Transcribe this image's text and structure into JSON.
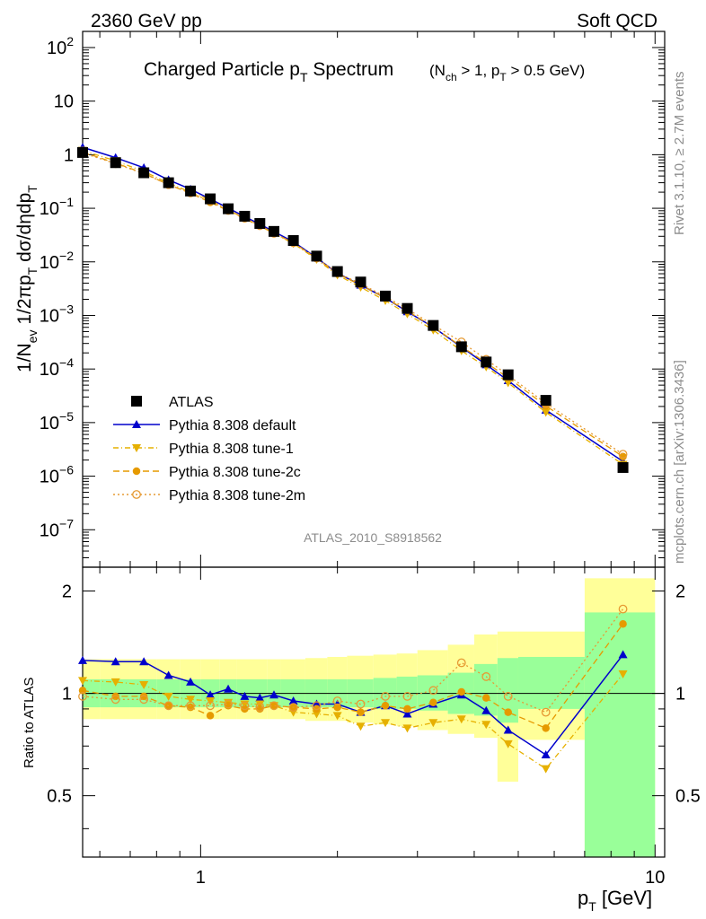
{
  "header": {
    "left": "2360 GeV pp",
    "right": "Soft QCD"
  },
  "side": {
    "rivet": "Rivet 3.1.10, ≥ 2.7M events",
    "mcplots": "mcplots.cern.ch [arXiv:1306.3436]"
  },
  "chart_data": {
    "type": "scatter",
    "title_main": "Charged Particle p",
    "title_main_sub": "T",
    "title_main_tail": " Spectrum",
    "title_cond": "(N",
    "title_cond_sub": "ch",
    "title_cond_mid": " > 1, p",
    "title_cond_sub2": "T",
    "title_cond_tail": " > 0.5 GeV)",
    "analysis_id": "ATLAS_2010_S8918562",
    "ylabel_upper": "1/N_ev 1/2πp_T dσ/dηdp_T",
    "ylabel_ratio": "Ratio to ATLAS",
    "xlabel": "p",
    "xlabel_sub": "T",
    "xlabel_tail": "  [GeV]",
    "xscale": "log",
    "yscale_upper": "log",
    "xlim": [
      0.55,
      10.5
    ],
    "ylim_upper": [
      2e-08,
      200
    ],
    "ylim_ratio": [
      0.33,
      2.35
    ],
    "x_tick_labels": [
      {
        "v": 1,
        "label": "1"
      },
      {
        "v": 10,
        "label": "10"
      }
    ],
    "y_tick_labels_upper": [
      {
        "v": 100,
        "base": "10",
        "exp": "2"
      },
      {
        "v": 10,
        "base": "10",
        "exp": ""
      },
      {
        "v": 1,
        "base": "1",
        "exp": ""
      },
      {
        "v": 0.1,
        "base": "10",
        "exp": "−1"
      },
      {
        "v": 0.01,
        "base": "10",
        "exp": "−2"
      },
      {
        "v": 0.001,
        "base": "10",
        "exp": "−3"
      },
      {
        "v": 0.0001,
        "base": "10",
        "exp": "−4"
      },
      {
        "v": 1e-05,
        "base": "10",
        "exp": "−5"
      },
      {
        "v": 1e-06,
        "base": "10",
        "exp": "−6"
      },
      {
        "v": 1e-07,
        "base": "10",
        "exp": "−7"
      }
    ],
    "y_tick_labels_ratio": [
      {
        "v": 0.5,
        "label": "0.5"
      },
      {
        "v": 1,
        "label": "1"
      },
      {
        "v": 2,
        "label": "2"
      }
    ],
    "legend_position": "bottom-left",
    "x": [
      0.55,
      0.65,
      0.75,
      0.85,
      0.95,
      1.05,
      1.15,
      1.25,
      1.35,
      1.45,
      1.6,
      1.8,
      2.0,
      2.25,
      2.55,
      2.85,
      3.25,
      3.75,
      4.25,
      4.75,
      5.75,
      8.5
    ],
    "x_edges": [
      0.5,
      0.6,
      0.7,
      0.8,
      0.9,
      1.0,
      1.1,
      1.2,
      1.3,
      1.4,
      1.5,
      1.7,
      1.9,
      2.1,
      2.4,
      2.7,
      3.0,
      3.5,
      4.0,
      4.5,
      5.0,
      7.0,
      10.0
    ],
    "atlas": [
      1.1,
      0.71,
      0.46,
      0.3,
      0.21,
      0.15,
      0.098,
      0.071,
      0.052,
      0.037,
      0.025,
      0.0128,
      0.0066,
      0.0042,
      0.0023,
      0.00135,
      0.00065,
      0.00026,
      0.000135,
      7.8e-05,
      2.6e-05,
      1.45e-06
    ],
    "band_yellow": [
      [
        0.84,
        1.26
      ],
      [
        0.84,
        1.26
      ],
      [
        0.84,
        1.26
      ],
      [
        0.84,
        1.26
      ],
      [
        0.84,
        1.26
      ],
      [
        0.84,
        1.26
      ],
      [
        0.84,
        1.26
      ],
      [
        0.84,
        1.26
      ],
      [
        0.84,
        1.26
      ],
      [
        0.84,
        1.26
      ],
      [
        0.84,
        1.26
      ],
      [
        0.83,
        1.27
      ],
      [
        0.83,
        1.28
      ],
      [
        0.82,
        1.29
      ],
      [
        0.81,
        1.3
      ],
      [
        0.8,
        1.31
      ],
      [
        0.78,
        1.34
      ],
      [
        0.76,
        1.39
      ],
      [
        0.74,
        1.49
      ],
      [
        0.55,
        1.52
      ],
      [
        0.73,
        1.52
      ],
      [
        0.33,
        2.18
      ]
    ],
    "band_green": [
      [
        0.91,
        1.1
      ],
      [
        0.91,
        1.1
      ],
      [
        0.91,
        1.1
      ],
      [
        0.91,
        1.1
      ],
      [
        0.91,
        1.1
      ],
      [
        0.91,
        1.1
      ],
      [
        0.91,
        1.1
      ],
      [
        0.91,
        1.1
      ],
      [
        0.91,
        1.1
      ],
      [
        0.91,
        1.1
      ],
      [
        0.91,
        1.1
      ],
      [
        0.91,
        1.1
      ],
      [
        0.91,
        1.1
      ],
      [
        0.91,
        1.1
      ],
      [
        0.9,
        1.11
      ],
      [
        0.9,
        1.12
      ],
      [
        0.89,
        1.13
      ],
      [
        0.87,
        1.15
      ],
      [
        0.86,
        1.22
      ],
      [
        0.82,
        1.27
      ],
      [
        0.9,
        1.28
      ],
      [
        0.33,
        1.73
      ]
    ],
    "series": [
      {
        "name": "ATLAS",
        "style": "data",
        "marker": "square",
        "color": "#000000",
        "ratio": [
          1,
          1,
          1,
          1,
          1,
          1,
          1,
          1,
          1,
          1,
          1,
          1,
          1,
          1,
          1,
          1,
          1,
          1,
          1,
          1,
          1,
          1
        ]
      },
      {
        "name": "Pythia 8.308 default",
        "style": "solid",
        "marker": "triangle-up",
        "color": "#0000cc",
        "ratio": [
          1.25,
          1.24,
          1.24,
          1.13,
          1.08,
          0.99,
          1.03,
          0.98,
          0.97,
          0.99,
          0.95,
          0.93,
          0.93,
          0.88,
          0.92,
          0.87,
          0.93,
          0.99,
          0.89,
          0.78,
          0.66,
          1.3
        ]
      },
      {
        "name": "Pythia 8.308 tune-1",
        "style": "dashdot",
        "marker": "triangle-down",
        "color": "#e6b000",
        "ratio": [
          1.09,
          1.08,
          1.06,
          0.98,
          0.96,
          0.95,
          0.94,
          0.93,
          0.93,
          0.92,
          0.88,
          0.87,
          0.86,
          0.8,
          0.82,
          0.79,
          0.82,
          0.84,
          0.81,
          0.71,
          0.6,
          1.14
        ]
      },
      {
        "name": "Pythia 8.308 tune-2c",
        "style": "dashed",
        "marker": "circle",
        "color": "#e69a00",
        "ratio": [
          1.02,
          0.98,
          0.98,
          0.92,
          0.91,
          0.86,
          0.92,
          0.9,
          0.9,
          0.92,
          0.91,
          0.9,
          0.91,
          0.88,
          0.92,
          0.9,
          0.94,
          1.01,
          0.97,
          0.88,
          0.79,
          1.6
        ]
      },
      {
        "name": "Pythia 8.308 tune-2m",
        "style": "dotted",
        "marker": "circle-open",
        "color": "#e69a33",
        "ratio": [
          0.98,
          0.96,
          0.96,
          0.92,
          0.92,
          0.92,
          0.93,
          0.92,
          0.91,
          0.92,
          0.91,
          0.92,
          0.95,
          0.93,
          0.98,
          0.98,
          1.02,
          1.23,
          1.12,
          0.98,
          0.88,
          1.77
        ]
      }
    ]
  }
}
